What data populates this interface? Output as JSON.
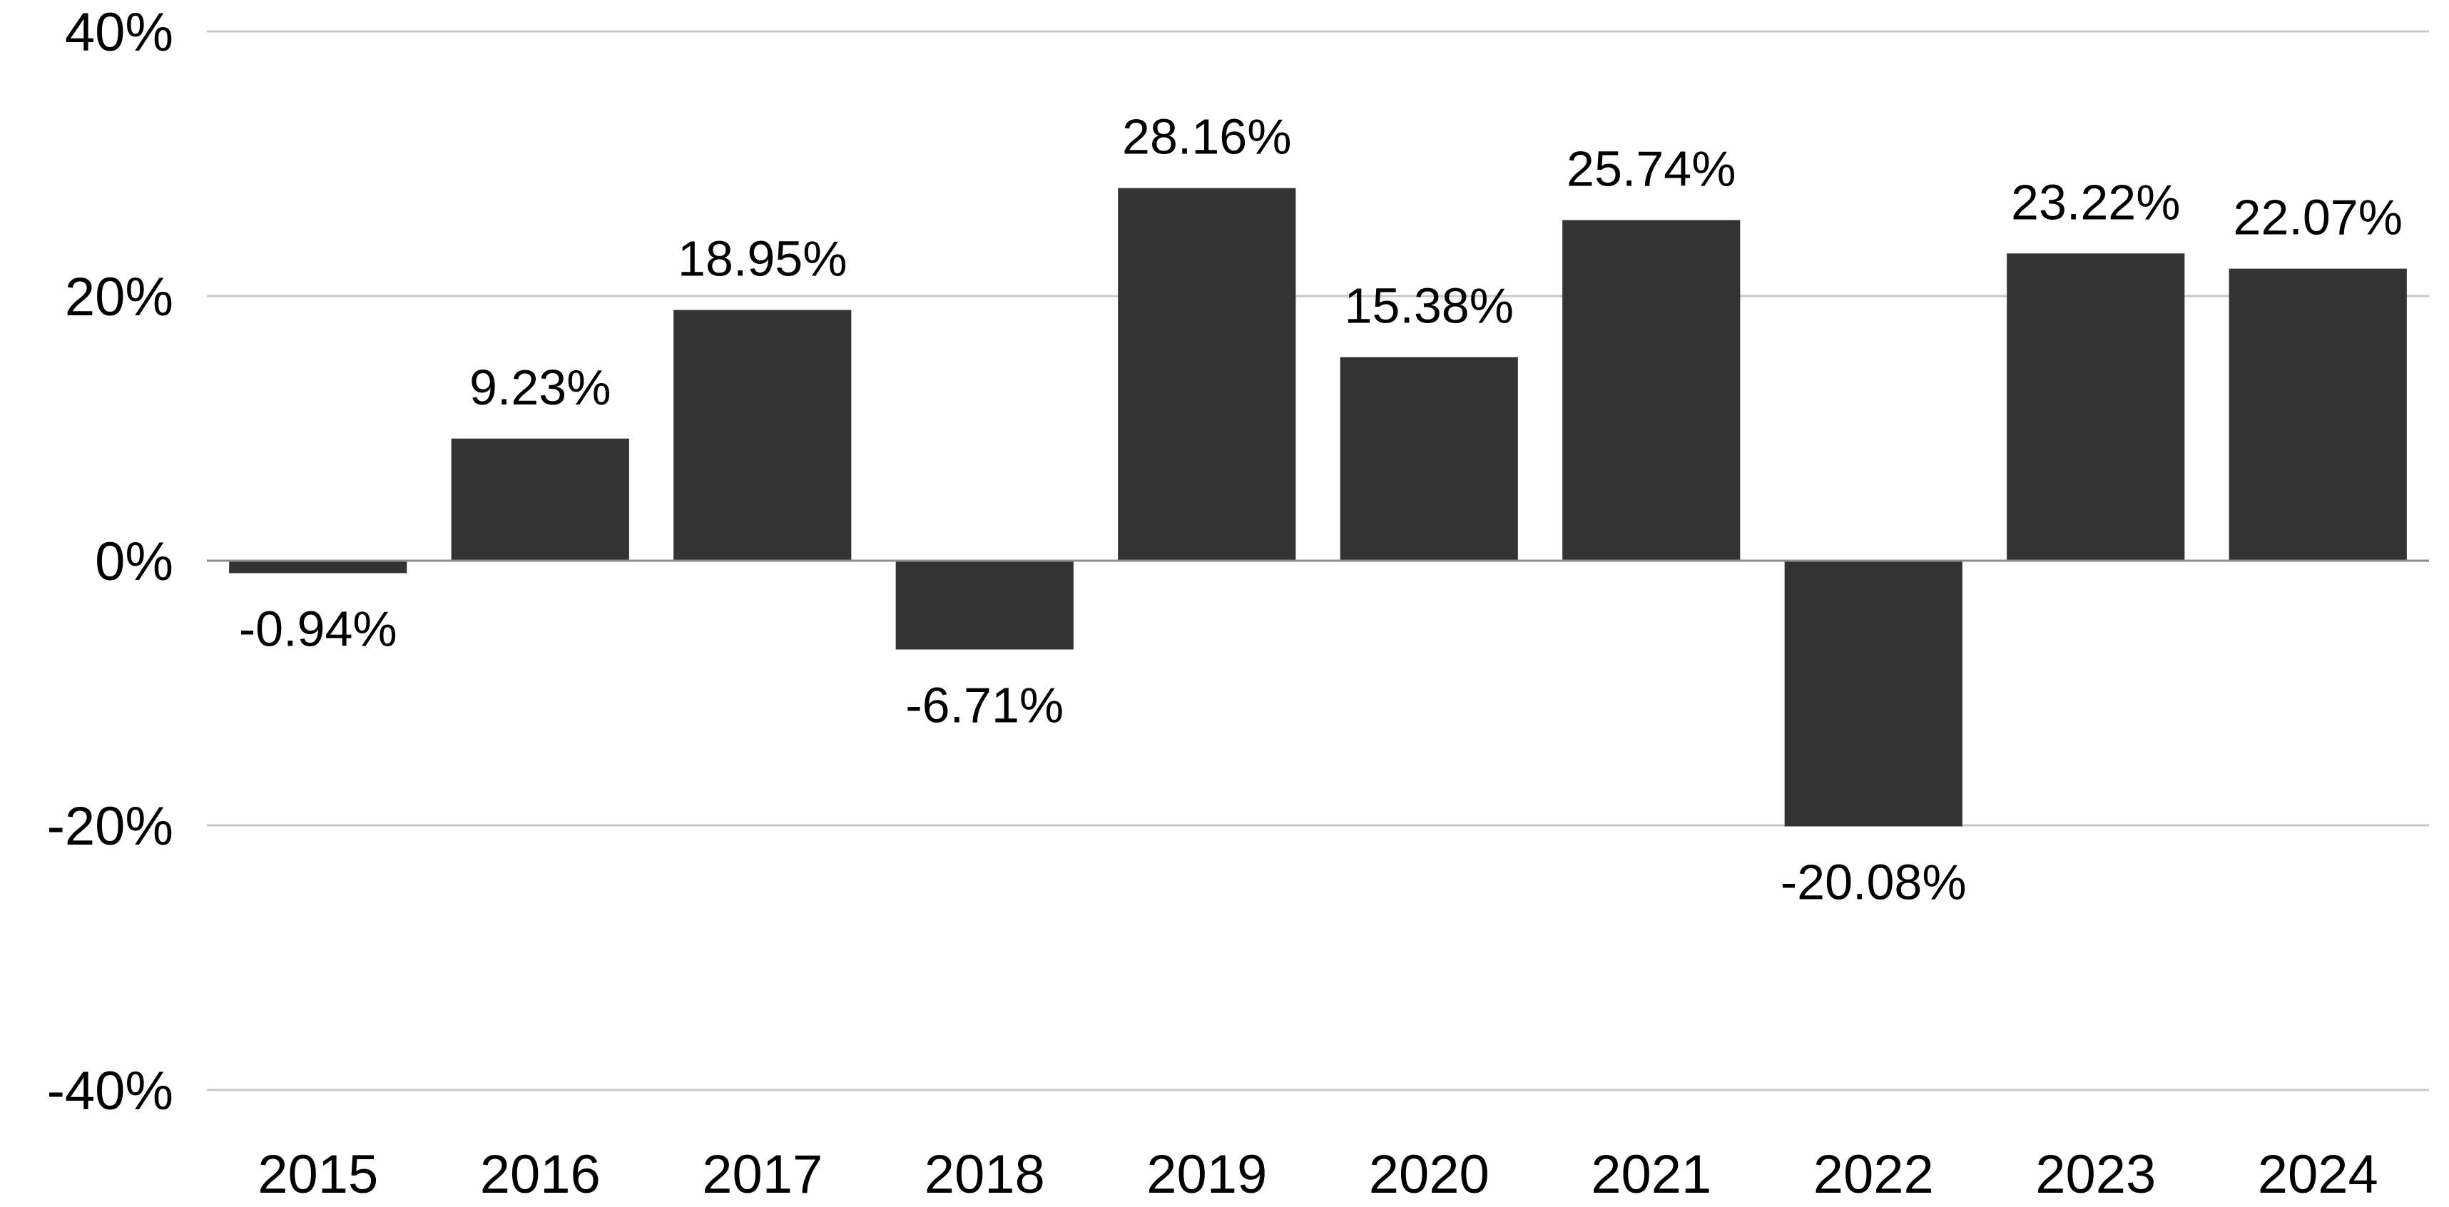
{
  "chart_data": {
    "type": "bar",
    "title": "",
    "xlabel": "",
    "ylabel": "",
    "categories": [
      "2015",
      "2016",
      "2017",
      "2018",
      "2019",
      "2020",
      "2021",
      "2022",
      "2023",
      "2024"
    ],
    "values": [
      -0.94,
      9.23,
      18.95,
      -6.71,
      28.16,
      15.38,
      25.74,
      -20.08,
      23.22,
      22.07
    ],
    "data_labels": [
      "-0.94%",
      "9.23%",
      "18.95%",
      "-6.71%",
      "28.16%",
      "15.38%",
      "25.74%",
      "-20.08%",
      "23.22%",
      "22.07%"
    ],
    "ylim": [
      -40,
      40
    ],
    "yticks": [
      40,
      20,
      0,
      -20,
      -40
    ],
    "ytick_labels": [
      "40%",
      "20%",
      "0%",
      "-20%",
      "-40%"
    ],
    "grid": true,
    "legend": "none",
    "colors": {
      "bar": "#333333",
      "grid": "#c8c8c8",
      "zero_line": "#8c8c8c",
      "text": "#000000"
    }
  }
}
